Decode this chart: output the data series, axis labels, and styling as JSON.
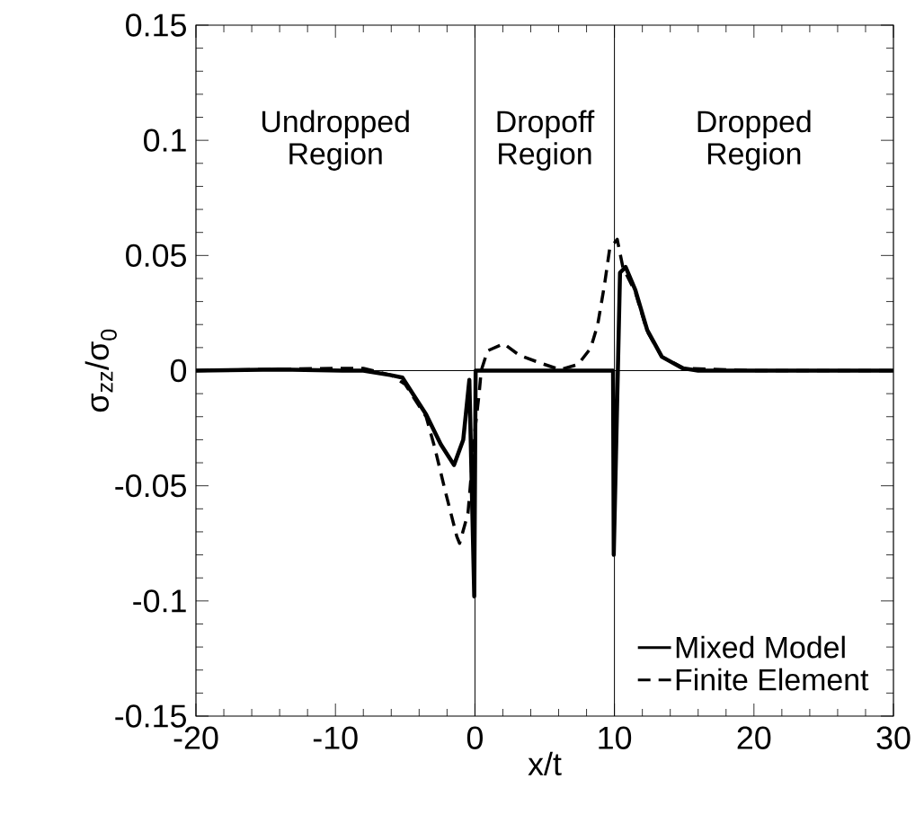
{
  "chart_data": {
    "type": "line",
    "xlabel": "x/t",
    "ylabel": "σ$_{zz}$/σ$_{0}$",
    "xlim": [
      -20,
      30
    ],
    "ylim": [
      -0.15,
      0.15
    ],
    "xticks": [
      -20,
      -10,
      0,
      10,
      20,
      30
    ],
    "yticks": [
      -0.15,
      -0.1,
      -0.05,
      0,
      0.05,
      0.1,
      0.15
    ],
    "grid": false,
    "legend": "bottom right",
    "ref_lines": [
      {
        "axis": "x",
        "value": 0,
        "color": "#000000"
      },
      {
        "axis": "x",
        "value": 10,
        "color": "#000000"
      },
      {
        "axis": "y",
        "value": 0,
        "color": "#000000"
      }
    ],
    "annotations": [
      "Undropped Region",
      "Dropoff Region",
      "Dropped Region"
    ],
    "series": [
      {
        "name": "Mixed Model",
        "color": "#000000",
        "line_style": "solid",
        "x": [
          -20,
          -14,
          -9.5,
          -8,
          -6,
          -5.2,
          -3.5,
          -2.45,
          -1.5,
          -0.84,
          -0.4,
          -0.05,
          0.05,
          5,
          9.9,
          9.95,
          10.4,
          10.8,
          11.5,
          12.35,
          13.4,
          14.9,
          16,
          20,
          30
        ],
        "values": [
          0,
          0.0005,
          0,
          0,
          -0.002,
          -0.003,
          -0.019,
          -0.032,
          -0.041,
          -0.03,
          -0.004,
          -0.098,
          0,
          0,
          0,
          -0.08,
          0.0425,
          0.045,
          0.035,
          0.0176,
          0.006,
          0.001,
          0,
          0,
          0
        ]
      },
      {
        "name": "Finite Element",
        "color": "#000000",
        "line_style": "dashed",
        "x": [
          -20,
          -10,
          -8,
          -6,
          -5,
          -3.5,
          -2.9,
          -2.1,
          -1.3,
          -1.1,
          -0.5,
          0,
          0.3,
          0.45,
          0.9,
          2.06,
          3.2,
          4.6,
          6.1,
          7.4,
          8.3,
          8.8,
          9.28,
          9.66,
          10.2,
          10.6,
          11.5,
          12.35,
          13.4,
          15,
          20,
          30
        ],
        "values": [
          0,
          0.001,
          0.001,
          -0.002,
          -0.006,
          -0.02,
          -0.033,
          -0.053,
          -0.072,
          -0.075,
          -0.062,
          -0.026,
          -0.01,
          0,
          0.0086,
          0.0117,
          0.0066,
          0.0035,
          0.0004,
          0.0027,
          0.0098,
          0.02,
          0.037,
          0.053,
          0.057,
          0.045,
          0.034,
          0.017,
          0.006,
          0.001,
          0,
          0
        ]
      }
    ]
  }
}
